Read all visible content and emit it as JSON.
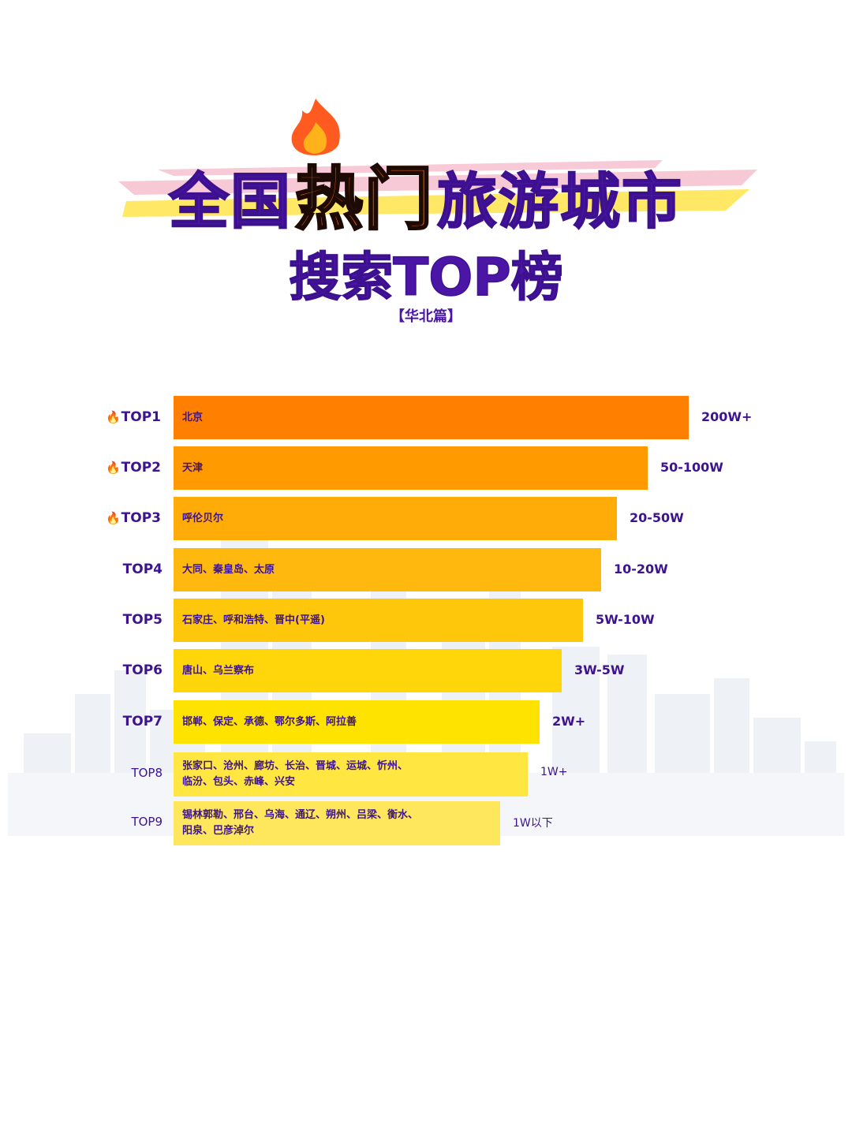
{
  "header": {
    "title_part1": "全国",
    "title_hot": "热门",
    "title_part2": "旅游城市",
    "subtitle": "搜索TOP榜",
    "region_tag": "【华北篇】"
  },
  "colors": {
    "title_purple": "#4b16a6",
    "hot_orange": "#ff6a00",
    "label_purple": "#3d138f"
  },
  "icons": {
    "fire": "fire-icon",
    "flame_decoration": "flame-icon"
  },
  "chart_data": {
    "type": "bar",
    "orientation": "horizontal",
    "categories": [
      "TOP1",
      "TOP2",
      "TOP3",
      "TOP4",
      "TOP5",
      "TOP6",
      "TOP7",
      "TOP8",
      "TOP9"
    ],
    "fire_marked": [
      true,
      true,
      true,
      false,
      false,
      false,
      false,
      false,
      false
    ],
    "bar_labels": [
      "北京",
      "天津",
      "呼伦贝尔",
      "大同、秦皇岛、太原",
      "石家庄、呼和浩特、晋中(平遥)",
      "唐山、乌兰察布",
      "邯郸、保定、承德、鄂尔多斯、阿拉善",
      "张家口、沧州、廊坊、长治、晋城、运城、忻州、\n临汾、包头、赤峰、兴安",
      "锡林郭勒、邢台、乌海、通辽、朔州、吕梁、衡水、\n阳泉、巴彦淖尔"
    ],
    "value_labels": [
      "200W+",
      "50-100W",
      "20-50W",
      "10-20W",
      "5W-10W",
      "3W-5W",
      "2W+",
      "1W+",
      "1W以下"
    ],
    "relative_length": [
      1.0,
      0.92,
      0.86,
      0.83,
      0.795,
      0.753,
      0.71,
      0.687,
      0.634
    ],
    "bar_colors": [
      "#ff7f00",
      "#ff9a00",
      "#ffab08",
      "#ffb90e",
      "#ffc70b",
      "#ffd60a",
      "#ffe300",
      "#ffe640",
      "#ffe75d"
    ]
  }
}
